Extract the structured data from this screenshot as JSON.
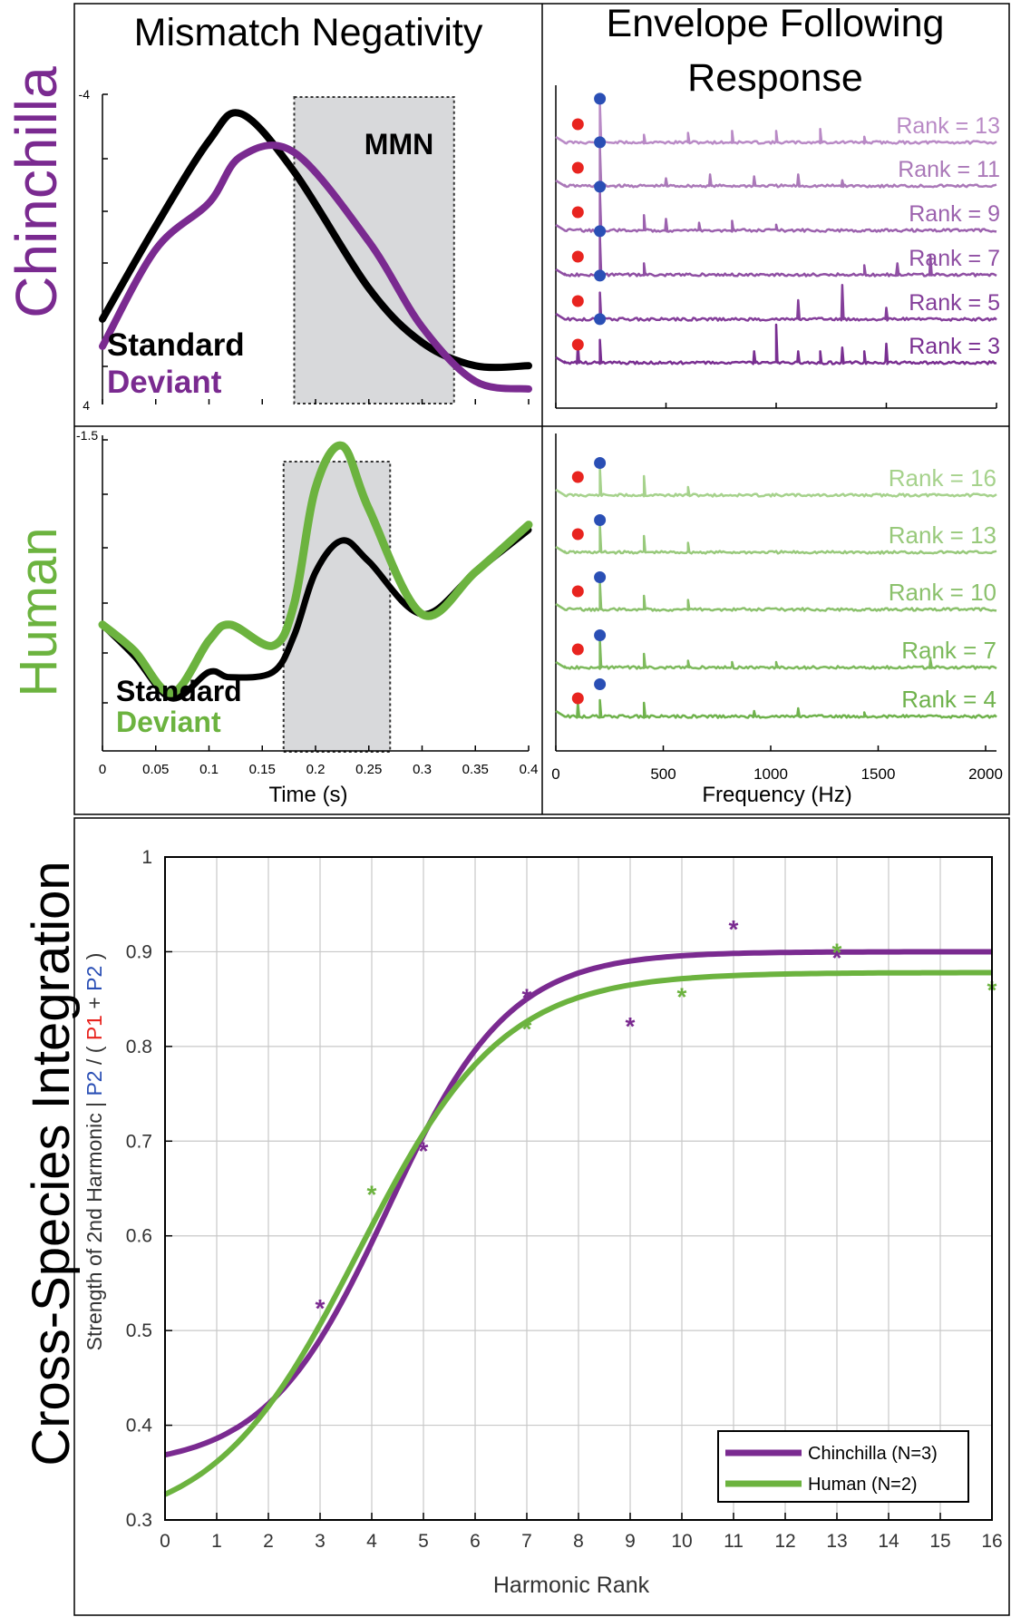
{
  "colors": {
    "chinchilla": "#7a2a90",
    "human": "#6cb33f",
    "standard": "#000000",
    "p1": "#e8241f",
    "p2": "#2a4fb5",
    "shade": "#d8d9db",
    "grid": "#c8c8c8",
    "chin_ranks": [
      "#b98ac6",
      "#aa78b8",
      "#9c62ae",
      "#8f4fa3",
      "#843e9a",
      "#792f91"
    ],
    "hum_ranks": [
      "#a6d28c",
      "#98c97b",
      "#8bc16c",
      "#7dba5c",
      "#6fb24c"
    ]
  },
  "row_labels": {
    "chinchilla": "Chinchilla",
    "human": "Human",
    "integration": "Cross-Species Integration"
  },
  "panels": {
    "mmn_title": "Mismatch Negativity",
    "efr_title_line1": "Envelope Following",
    "efr_title_line2": "Response",
    "mmn_label": "MMN",
    "chin_legend": {
      "standard": "Standard",
      "deviant": "Deviant"
    },
    "human_legend": {
      "standard": "Standard",
      "deviant": "Deviant"
    },
    "chin_y_top": "-4",
    "chin_y_bottom": "4",
    "human_y_top": "-1.5",
    "time_xlabel": "Time (s)",
    "freq_xlabel": "Frequency (Hz)",
    "time_ticks": [
      "0",
      "0.05",
      "0.1",
      "0.15",
      "0.2",
      "0.25",
      "0.3",
      "0.35",
      "0.4"
    ],
    "freq_ticks": [
      "0",
      "500",
      "1000",
      "1500",
      "2000"
    ]
  },
  "chart_data": [
    {
      "type": "line",
      "panel": "chinchilla-mmn",
      "x": [
        0,
        0.05,
        0.1,
        0.13,
        0.18,
        0.25,
        0.3,
        0.35,
        0.4
      ],
      "series": [
        {
          "name": "Standard",
          "values": [
            1.8,
            -0.6,
            -2.8,
            -3.5,
            -2.0,
            1.0,
            2.4,
            3.0,
            3.0
          ]
        },
        {
          "name": "Deviant",
          "values": [
            2.5,
            0.0,
            -1.2,
            -2.4,
            -2.5,
            -0.2,
            2.0,
            3.4,
            3.6
          ]
        }
      ],
      "shaded_window": [
        0.18,
        0.33
      ],
      "ylim": [
        -4,
        4
      ],
      "y_reversed": true
    },
    {
      "type": "line",
      "panel": "human-mmn",
      "x": [
        0,
        0.03,
        0.065,
        0.1,
        0.12,
        0.16,
        0.18,
        0.2,
        0.225,
        0.25,
        0.3,
        0.35,
        0.4
      ],
      "series": [
        {
          "name": "Standard",
          "values": [
            0.3,
            0.6,
            1.0,
            0.75,
            0.8,
            0.75,
            0.4,
            -0.2,
            -0.5,
            -0.3,
            0.2,
            -0.2,
            -0.6
          ]
        },
        {
          "name": "Deviant",
          "values": [
            0.3,
            0.55,
            0.95,
            0.45,
            0.3,
            0.5,
            0.1,
            -1.0,
            -1.4,
            -0.8,
            0.2,
            -0.2,
            -0.65
          ]
        }
      ],
      "shaded_window": [
        0.17,
        0.27
      ],
      "ylim": [
        -1.5,
        1.5
      ],
      "y_reversed": true
    },
    {
      "type": "line",
      "panel": "chinchilla-efr",
      "xlim": [
        0,
        2000
      ],
      "series": [
        {
          "name": "Rank = 13",
          "p1_hz": 100,
          "p2_hz": 200,
          "peaks": [
            [
              200,
              1.0
            ],
            [
              400,
              0.2
            ],
            [
              600,
              0.25
            ],
            [
              800,
              0.3
            ],
            [
              1000,
              0.3
            ],
            [
              1200,
              0.35
            ],
            [
              1400,
              0.15
            ]
          ]
        },
        {
          "name": "Rank = 11",
          "p1_hz": 100,
          "p2_hz": 200,
          "peaks": [
            [
              200,
              1.0
            ],
            [
              500,
              0.2
            ],
            [
              700,
              0.3
            ],
            [
              900,
              0.25
            ],
            [
              1100,
              0.3
            ],
            [
              1300,
              0.15
            ]
          ]
        },
        {
          "name": "Rank = 9",
          "p1_hz": 100,
          "p2_hz": 200,
          "peaks": [
            [
              200,
              1.0
            ],
            [
              400,
              0.4
            ],
            [
              500,
              0.3
            ],
            [
              650,
              0.2
            ],
            [
              800,
              0.25
            ],
            [
              1000,
              0.15
            ]
          ]
        },
        {
          "name": "Rank = 7",
          "p1_hz": 100,
          "p2_hz": 200,
          "peaks": [
            [
              200,
              1.0
            ],
            [
              400,
              0.3
            ],
            [
              1400,
              0.25
            ],
            [
              1550,
              0.3
            ],
            [
              1700,
              0.5
            ]
          ]
        },
        {
          "name": "Rank = 5",
          "p1_hz": 100,
          "p2_hz": 200,
          "peaks": [
            [
              200,
              0.7
            ],
            [
              1100,
              0.5
            ],
            [
              1300,
              0.9
            ],
            [
              1500,
              0.3
            ]
          ]
        },
        {
          "name": "Rank = 3",
          "p1_hz": 100,
          "p2_hz": 200,
          "peaks": [
            [
              100,
              0.5
            ],
            [
              200,
              0.6
            ],
            [
              900,
              0.3
            ],
            [
              1000,
              1.0
            ],
            [
              1100,
              0.3
            ],
            [
              1200,
              0.3
            ],
            [
              1300,
              0.4
            ],
            [
              1400,
              0.3
            ],
            [
              1500,
              0.5
            ]
          ]
        }
      ]
    },
    {
      "type": "line",
      "panel": "human-efr",
      "xlim": [
        0,
        2000
      ],
      "series": [
        {
          "name": "Rank = 16",
          "p1_hz": 100,
          "p2_hz": 200,
          "peaks": [
            [
              200,
              1.0
            ],
            [
              400,
              0.7
            ],
            [
              600,
              0.3
            ]
          ]
        },
        {
          "name": "Rank = 13",
          "p1_hz": 100,
          "p2_hz": 200,
          "peaks": [
            [
              200,
              1.0
            ],
            [
              400,
              0.6
            ],
            [
              600,
              0.35
            ]
          ]
        },
        {
          "name": "Rank = 10",
          "p1_hz": 100,
          "p2_hz": 200,
          "peaks": [
            [
              200,
              1.0
            ],
            [
              400,
              0.5
            ],
            [
              600,
              0.35
            ]
          ]
        },
        {
          "name": "Rank = 7",
          "p1_hz": 100,
          "p2_hz": 200,
          "peaks": [
            [
              200,
              1.0
            ],
            [
              400,
              0.5
            ],
            [
              600,
              0.25
            ],
            [
              800,
              0.2
            ],
            [
              1000,
              0.2
            ],
            [
              1700,
              0.3
            ]
          ]
        },
        {
          "name": "Rank = 4",
          "p1_hz": 100,
          "p2_hz": 200,
          "peaks": [
            [
              100,
              0.5
            ],
            [
              200,
              0.6
            ],
            [
              400,
              0.5
            ],
            [
              900,
              0.2
            ],
            [
              1100,
              0.3
            ],
            [
              1400,
              0.15
            ]
          ]
        }
      ]
    },
    {
      "type": "scatter",
      "panel": "cross-species",
      "xlabel": "Harmonic Rank",
      "ylabel_parts": [
        "Strength of 2nd Harmonic |",
        "P2",
        "/ (",
        "P1",
        "+",
        "P2",
        ")"
      ],
      "xlim": [
        0,
        16
      ],
      "ylim": [
        0.3,
        1
      ],
      "xticks": [
        "0",
        "1",
        "2",
        "3",
        "4",
        "5",
        "6",
        "7",
        "8",
        "9",
        "10",
        "11",
        "12",
        "13",
        "14",
        "15",
        "16"
      ],
      "yticks": [
        "0.3",
        "0.4",
        "0.5",
        "0.6",
        "0.7",
        "0.8",
        "0.9",
        "1"
      ],
      "grid": true,
      "legend_position": "bottom-right",
      "series": [
        {
          "name": "Chinchilla (N=3)",
          "points": [
            [
              3,
              0.527
            ],
            [
              5,
              0.693
            ],
            [
              7,
              0.855
            ],
            [
              9,
              0.825
            ],
            [
              11,
              0.927
            ],
            [
              13,
              0.897
            ]
          ],
          "fit": {
            "base": 0.355,
            "amplitude": 0.545,
            "midpoint": 4.3,
            "slope": 0.85
          }
        },
        {
          "name": "Human (N=2)",
          "points": [
            [
              4,
              0.647
            ],
            [
              7,
              0.822
            ],
            [
              10,
              0.856
            ],
            [
              13,
              0.903
            ],
            [
              16,
              0.863
            ]
          ],
          "fit": {
            "base": 0.29,
            "amplitude": 0.588,
            "midpoint": 3.75,
            "slope": 0.72
          }
        }
      ]
    }
  ]
}
